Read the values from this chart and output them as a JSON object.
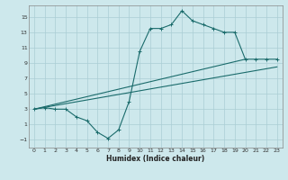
{
  "xlabel": "Humidex (Indice chaleur)",
  "ylabel": "",
  "bg_color": "#cde8ec",
  "grid_color": "#aacdd4",
  "line_color": "#1a6b6b",
  "xlim": [
    -0.5,
    23.5
  ],
  "ylim": [
    -2.0,
    16.5
  ],
  "xticks": [
    0,
    1,
    2,
    3,
    4,
    5,
    6,
    7,
    8,
    9,
    10,
    11,
    12,
    13,
    14,
    15,
    16,
    17,
    18,
    19,
    20,
    21,
    22,
    23
  ],
  "yticks": [
    -1,
    1,
    3,
    5,
    7,
    9,
    11,
    13,
    15
  ],
  "main_line_x": [
    0,
    1,
    2,
    3,
    4,
    5,
    6,
    7,
    8,
    9,
    10,
    11,
    12,
    13,
    14,
    15,
    16,
    17,
    18,
    19,
    20,
    21,
    22,
    23
  ],
  "main_line_y": [
    3,
    3.2,
    3,
    3,
    2,
    1.5,
    0,
    -0.8,
    0.3,
    4,
    10.5,
    13.5,
    13.5,
    14,
    15.8,
    14.5,
    14,
    13.5,
    13,
    13,
    9.5,
    9.5,
    9.5,
    9.5
  ],
  "upper_line_x": [
    0,
    20
  ],
  "upper_line_y": [
    3,
    9.5
  ],
  "lower_line_x": [
    0,
    23
  ],
  "lower_line_y": [
    3,
    8.5
  ]
}
